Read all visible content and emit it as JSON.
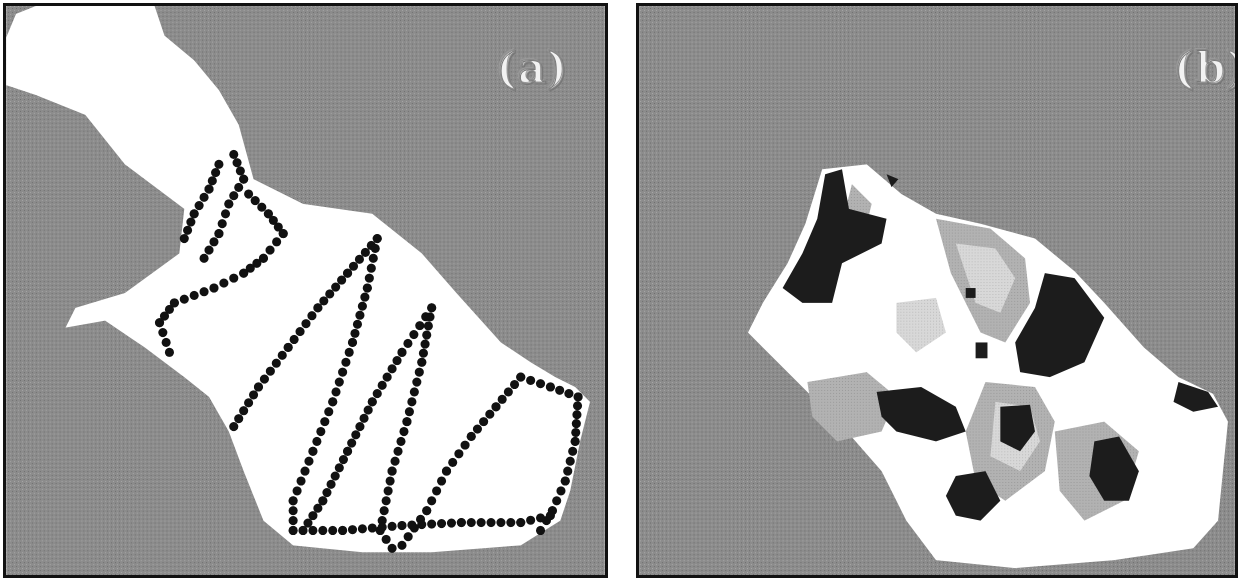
{
  "panels": [
    {
      "label": "(a)"
    },
    {
      "label": "(b)"
    }
  ],
  "colors": {
    "land": "#8c8c8c",
    "water": "#ffffff",
    "sample_point": "#111111",
    "contour_light": "#d6d6d6",
    "contour_mid": "#b4b4b4",
    "contour_dark": "#1c1c1c",
    "separator": "#ffffff",
    "border": "#111111"
  },
  "icons": {
    "sample_point": "filled-circle"
  }
}
